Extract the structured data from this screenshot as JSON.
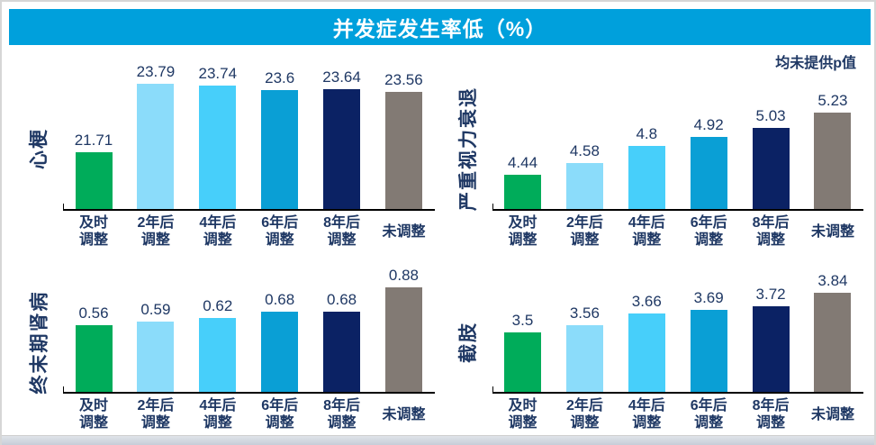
{
  "title": "并发症发生率低（%）",
  "note": "均未提供p值",
  "colors": {
    "banner": "#00A0DC",
    "text": "#1F3864",
    "axis": "#000000",
    "bars": [
      "#00AC5A",
      "#8BDCFA",
      "#47CFFA",
      "#0A9FD5",
      "#0B2264",
      "#827A74"
    ]
  },
  "categories": [
    "及时调整",
    "2年后调整",
    "4年后调整",
    "6年后调整",
    "8年后调整",
    "未调整"
  ],
  "categories_lines": [
    [
      "及时",
      "调整"
    ],
    [
      "2年后",
      "调整"
    ],
    [
      "4年后",
      "调整"
    ],
    [
      "6年后",
      "调整"
    ],
    [
      "8年后",
      "调整"
    ],
    [
      "未调整"
    ]
  ],
  "chart_data": [
    {
      "type": "bar",
      "title": "心梗",
      "categories": [
        "及时调整",
        "2年后调整",
        "4年后调整",
        "6年后调整",
        "8年后调整",
        "未调整"
      ],
      "values": [
        21.71,
        23.79,
        23.74,
        23.6,
        23.64,
        23.56
      ],
      "labels": [
        "21.71",
        "23.79",
        "23.74",
        "23.6",
        "23.64",
        "23.56"
      ],
      "ylim": [
        20,
        24.1
      ],
      "grid": false,
      "legend": false
    },
    {
      "type": "bar",
      "title": "严重视力衰退",
      "categories": [
        "及时调整",
        "2年后调整",
        "4年后调整",
        "6年后调整",
        "8年后调整",
        "未调整"
      ],
      "values": [
        4.44,
        4.58,
        4.8,
        4.92,
        5.03,
        5.23
      ],
      "labels": [
        "4.44",
        "4.58",
        "4.8",
        "4.92",
        "5.03",
        "5.23"
      ],
      "ylim": [
        4,
        5.72
      ],
      "grid": false,
      "legend": false
    },
    {
      "type": "bar",
      "title": "终末期肾病",
      "categories": [
        "及时调整",
        "2年后调整",
        "4年后调整",
        "6年后调整",
        "8年后调整",
        "未调整"
      ],
      "values": [
        0.56,
        0.59,
        0.62,
        0.68,
        0.68,
        0.88
      ],
      "labels": [
        "0.56",
        "0.59",
        "0.62",
        "0.68",
        "0.68",
        "0.88"
      ],
      "ylim": [
        0,
        0.95
      ],
      "grid": false,
      "legend": false
    },
    {
      "type": "bar",
      "title": "截肢",
      "categories": [
        "及时调整",
        "2年后调整",
        "4年后调整",
        "6年后调整",
        "8年后调整",
        "未调整"
      ],
      "values": [
        3.5,
        3.56,
        3.66,
        3.69,
        3.72,
        3.84
      ],
      "labels": [
        "3.5",
        "3.56",
        "3.66",
        "3.69",
        "3.72",
        "3.84"
      ],
      "ylim": [
        3,
        3.95
      ],
      "grid": false,
      "legend": false
    }
  ]
}
